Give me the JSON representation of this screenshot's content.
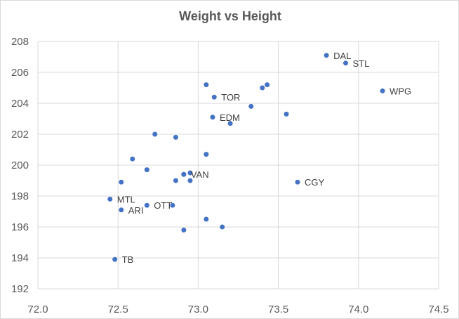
{
  "chart_data": {
    "type": "scatter",
    "title": "Weight vs Height",
    "xlabel": "",
    "ylabel": "",
    "xlim": [
      72.0,
      74.5
    ],
    "ylim": [
      192,
      208
    ],
    "xticks": [
      "72.0",
      "72.5",
      "73.0",
      "73.5",
      "74.0",
      "74.5"
    ],
    "yticks": [
      "208",
      "206",
      "204",
      "202",
      "200",
      "198",
      "196",
      "194",
      "192"
    ],
    "grid": true,
    "legend": "none",
    "marker_color": "#4472c4",
    "points": [
      {
        "x": 73.8,
        "y": 207.1,
        "label": "DAL"
      },
      {
        "x": 73.92,
        "y": 206.6,
        "label": "STL"
      },
      {
        "x": 74.15,
        "y": 204.8,
        "label": "WPG"
      },
      {
        "x": 73.05,
        "y": 205.2,
        "label": ""
      },
      {
        "x": 73.4,
        "y": 205.0,
        "label": ""
      },
      {
        "x": 73.43,
        "y": 205.2,
        "label": ""
      },
      {
        "x": 73.1,
        "y": 204.4,
        "label": "TOR"
      },
      {
        "x": 73.33,
        "y": 203.8,
        "label": ""
      },
      {
        "x": 73.55,
        "y": 203.3,
        "label": ""
      },
      {
        "x": 73.09,
        "y": 203.1,
        "label": "EDM"
      },
      {
        "x": 73.2,
        "y": 202.7,
        "label": ""
      },
      {
        "x": 72.73,
        "y": 202.0,
        "label": ""
      },
      {
        "x": 72.86,
        "y": 201.8,
        "label": ""
      },
      {
        "x": 73.05,
        "y": 200.7,
        "label": ""
      },
      {
        "x": 72.59,
        "y": 200.4,
        "label": ""
      },
      {
        "x": 72.68,
        "y": 199.7,
        "label": ""
      },
      {
        "x": 72.95,
        "y": 199.5,
        "label": ""
      },
      {
        "x": 72.91,
        "y": 199.4,
        "label": "VAN"
      },
      {
        "x": 72.91,
        "y": 199.4,
        "label": ""
      },
      {
        "x": 72.95,
        "y": 199.0,
        "label": ""
      },
      {
        "x": 72.86,
        "y": 199.0,
        "label": ""
      },
      {
        "x": 72.52,
        "y": 198.9,
        "label": ""
      },
      {
        "x": 73.62,
        "y": 198.9,
        "label": "CGY"
      },
      {
        "x": 72.45,
        "y": 197.8,
        "label": "MTL"
      },
      {
        "x": 72.68,
        "y": 197.4,
        "label": "OTT"
      },
      {
        "x": 72.84,
        "y": 197.4,
        "label": ""
      },
      {
        "x": 72.52,
        "y": 197.1,
        "label": "ARI"
      },
      {
        "x": 73.05,
        "y": 196.5,
        "label": ""
      },
      {
        "x": 73.15,
        "y": 196.0,
        "label": ""
      },
      {
        "x": 72.91,
        "y": 195.8,
        "label": ""
      },
      {
        "x": 72.48,
        "y": 193.9,
        "label": "TB"
      }
    ]
  }
}
